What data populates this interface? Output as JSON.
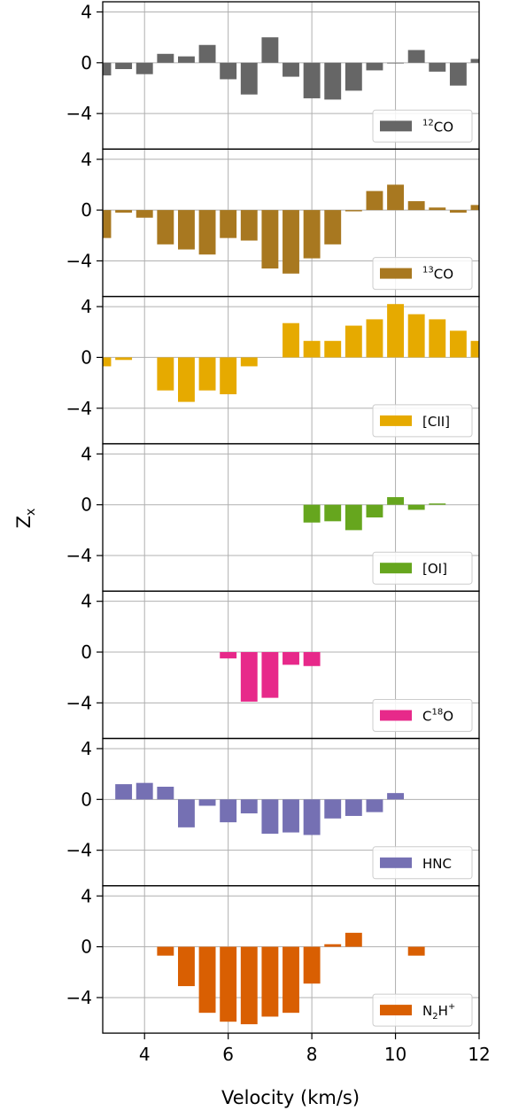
{
  "chart_data": {
    "type": "bar",
    "xlabel": "Velocity (km/s)",
    "ylabel": "Z",
    "ylabel_sub": "x",
    "xlim": [
      3,
      12
    ],
    "ylim": [
      -6.8,
      4.8
    ],
    "xticks": [
      4,
      6,
      8,
      10,
      12
    ],
    "yticks": [
      4,
      0,
      -4
    ],
    "ytick_labels": [
      "4",
      "0",
      "−4"
    ],
    "bar_width": 0.4,
    "grid": true,
    "legend_position": "lower-right",
    "panels": [
      {
        "name_pre": "",
        "name_sup": "12",
        "name_mid": "CO",
        "name_sub": "",
        "name_post": "",
        "color": "#666666",
        "x": [
          3.0,
          3.5,
          4.0,
          4.5,
          5.0,
          5.5,
          6.0,
          6.5,
          7.0,
          7.5,
          8.0,
          8.5,
          9.0,
          9.5,
          10.0,
          10.5,
          11.0,
          11.5,
          12.0
        ],
        "values": [
          -1.0,
          -0.5,
          -0.9,
          0.7,
          0.5,
          1.4,
          -1.3,
          -2.5,
          2.0,
          -1.1,
          -2.8,
          -2.9,
          -2.2,
          -0.6,
          0.0,
          1.0,
          -0.7,
          -1.8,
          0.3
        ]
      },
      {
        "name_pre": "",
        "name_sup": "13",
        "name_mid": "CO",
        "name_sub": "",
        "name_post": "",
        "color": "#a87820",
        "x": [
          3.0,
          3.5,
          4.0,
          4.5,
          5.0,
          5.5,
          6.0,
          6.5,
          7.0,
          7.5,
          8.0,
          8.5,
          9.0,
          9.5,
          10.0,
          10.5,
          11.0,
          11.5,
          12.0
        ],
        "values": [
          -2.2,
          -0.2,
          -0.6,
          -2.7,
          -3.1,
          -3.5,
          -2.2,
          -2.4,
          -4.6,
          -5.0,
          -3.8,
          -2.7,
          -0.1,
          1.5,
          2.0,
          0.7,
          0.2,
          -0.2,
          0.4
        ]
      },
      {
        "name_pre": "[CII]",
        "name_sup": "",
        "name_mid": "",
        "name_sub": "",
        "name_post": "",
        "color": "#e6aa00",
        "x": [
          3.0,
          3.5,
          4.5,
          5.0,
          5.5,
          6.0,
          6.5,
          7.5,
          8.0,
          8.5,
          9.0,
          9.5,
          10.0,
          10.5,
          11.0,
          11.5,
          12.0
        ],
        "values": [
          -0.7,
          -0.2,
          -2.6,
          -3.5,
          -2.6,
          -2.9,
          -0.7,
          2.7,
          1.3,
          1.3,
          2.5,
          3.0,
          4.2,
          3.4,
          3.0,
          2.1,
          1.3
        ]
      },
      {
        "name_pre": "[OI]",
        "name_sup": "",
        "name_mid": "",
        "name_sub": "",
        "name_post": "",
        "color": "#66a61e",
        "x": [
          8.0,
          8.5,
          9.0,
          9.5,
          10.0,
          10.5,
          11.0
        ],
        "values": [
          -1.4,
          -1.3,
          -2.0,
          -1.0,
          0.6,
          -0.4,
          0.1
        ]
      },
      {
        "name_pre": "",
        "name_sup": "",
        "name_mid": "C",
        "name_sup2": "18",
        "name_post": "O",
        "name_sub": "",
        "color": "#e7298a",
        "x": [
          6.0,
          6.5,
          7.0,
          7.5,
          8.0
        ],
        "values": [
          -0.5,
          -3.9,
          -3.6,
          -1.0,
          -1.1
        ]
      },
      {
        "name_pre": "HNC",
        "name_sup": "",
        "name_mid": "",
        "name_sub": "",
        "name_post": "",
        "color": "#7570b3",
        "x": [
          3.5,
          4.0,
          4.5,
          5.0,
          5.5,
          6.0,
          6.5,
          7.0,
          7.5,
          8.0,
          8.5,
          9.0,
          9.5,
          10.0
        ],
        "values": [
          1.2,
          1.3,
          1.0,
          -2.2,
          -0.5,
          -1.8,
          -1.1,
          -2.7,
          -2.6,
          -2.8,
          -1.5,
          -1.3,
          -1.0,
          0.5
        ]
      },
      {
        "name_pre": "",
        "name_sup": "",
        "name_mid": "N",
        "name_sub": "2",
        "name_post": "H",
        "name_sup2": "+",
        "color": "#d95f02",
        "x": [
          4.5,
          5.0,
          5.5,
          6.0,
          6.5,
          7.0,
          7.5,
          8.0,
          8.5,
          9.0,
          10.5
        ],
        "values": [
          -0.7,
          -3.1,
          -5.2,
          -5.9,
          -6.1,
          -5.5,
          -5.2,
          -2.9,
          0.2,
          1.1,
          -0.7
        ]
      }
    ]
  }
}
